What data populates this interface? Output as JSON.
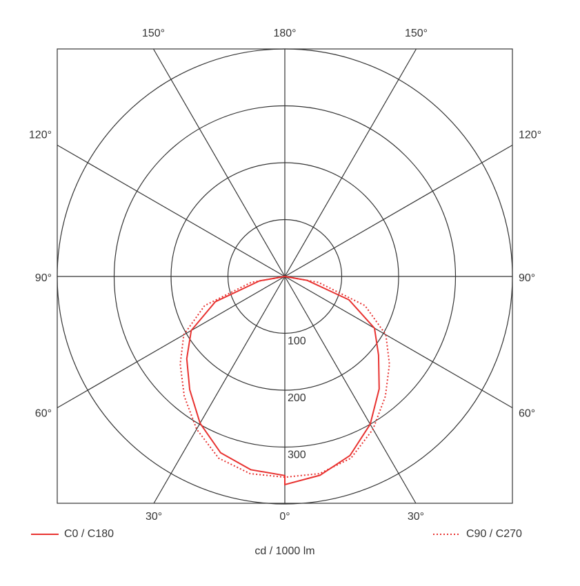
{
  "chart_data": {
    "type": "polar",
    "axis_label": "cd / 1000 lm",
    "rlim": [
      0,
      400
    ],
    "rticks": [
      100,
      200,
      300
    ],
    "angular_ticks": [
      {
        "value": -150,
        "label": "150°"
      },
      {
        "value": 180,
        "label": "180°"
      },
      {
        "value": 150,
        "label": "150°"
      },
      {
        "value": -120,
        "label": "120°"
      },
      {
        "value": 120,
        "label": "120°"
      },
      {
        "value": -90,
        "label": "90°"
      },
      {
        "value": 90,
        "label": "90°"
      },
      {
        "value": -60,
        "label": "60°"
      },
      {
        "value": 60,
        "label": "60°"
      },
      {
        "value": -30,
        "label": "30°"
      },
      {
        "value": 0,
        "label": "0°"
      },
      {
        "value": 30,
        "label": "30°"
      }
    ],
    "x": [
      -90,
      -80,
      -70,
      -60,
      -50,
      -40,
      -30,
      -20,
      -10,
      0,
      0,
      10,
      20,
      30,
      40,
      50,
      60,
      70,
      80,
      90
    ],
    "series": [
      {
        "name": "C0 / C180",
        "color": "#e8312f",
        "style": "solid",
        "values": [
          0,
          45,
          130,
          190,
          225,
          260,
          298,
          330,
          345,
          350,
          366,
          355,
          335,
          300,
          258,
          215,
          182,
          120,
          40,
          0
        ]
      },
      {
        "name": "C90 / C270",
        "color": "#e8312f",
        "style": "dotted",
        "values": [
          0,
          60,
          150,
          205,
          240,
          275,
          310,
          340,
          352,
          353,
          353,
          352,
          340,
          310,
          275,
          240,
          205,
          150,
          60,
          0
        ]
      }
    ]
  }
}
